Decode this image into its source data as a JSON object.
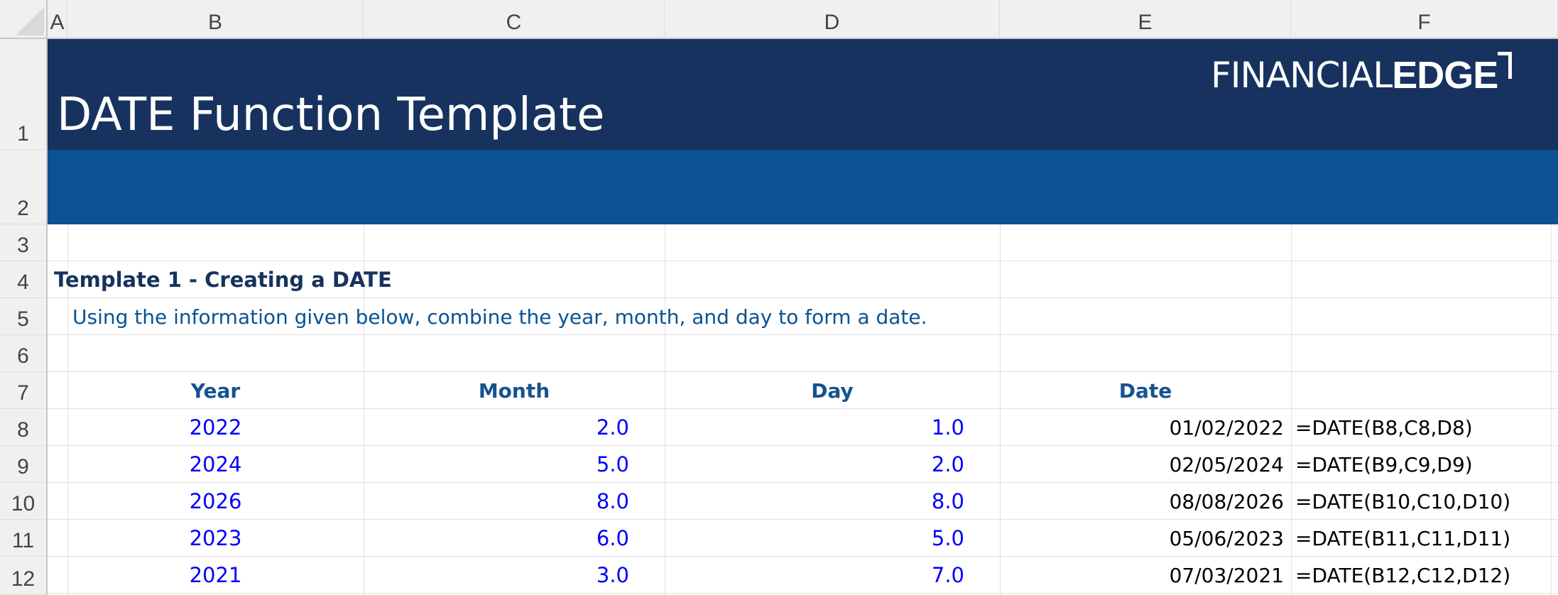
{
  "columns": [
    "A",
    "B",
    "C",
    "D",
    "E",
    "F"
  ],
  "rows": [
    "1",
    "2",
    "3",
    "4",
    "5",
    "6",
    "7",
    "8",
    "9",
    "10",
    "11",
    "12"
  ],
  "header": {
    "title": "DATE Function Template",
    "logo_text_light": "FINANCIAL",
    "logo_text_bold": "EDGE"
  },
  "section": {
    "heading": "Template 1 - Creating a DATE",
    "instruction": "Using the information given below, combine the year, month, and day to form a date."
  },
  "table": {
    "headers": [
      "Year",
      "Month",
      "Day",
      "Date"
    ],
    "rows": [
      {
        "year": "2022",
        "month": "2.0",
        "day": "1.0",
        "date": "01/02/2022",
        "formula": "=DATE(B8,C8,D8)"
      },
      {
        "year": "2024",
        "month": "5.0",
        "day": "2.0",
        "date": "02/05/2024",
        "formula": "=DATE(B9,C9,D9)"
      },
      {
        "year": "2026",
        "month": "8.0",
        "day": "8.0",
        "date": "08/08/2026",
        "formula": "=DATE(B10,C10,D10)"
      },
      {
        "year": "2023",
        "month": "6.0",
        "day": "5.0",
        "date": "05/06/2023",
        "formula": "=DATE(B11,C11,D11)"
      },
      {
        "year": "2021",
        "month": "3.0",
        "day": "7.0",
        "date": "07/03/2021",
        "formula": "=DATE(B12,C12,D12)"
      }
    ]
  },
  "colors": {
    "header_dark": "#17325e",
    "header_blue": "#0a5292",
    "input_blue": "#0000ff"
  }
}
